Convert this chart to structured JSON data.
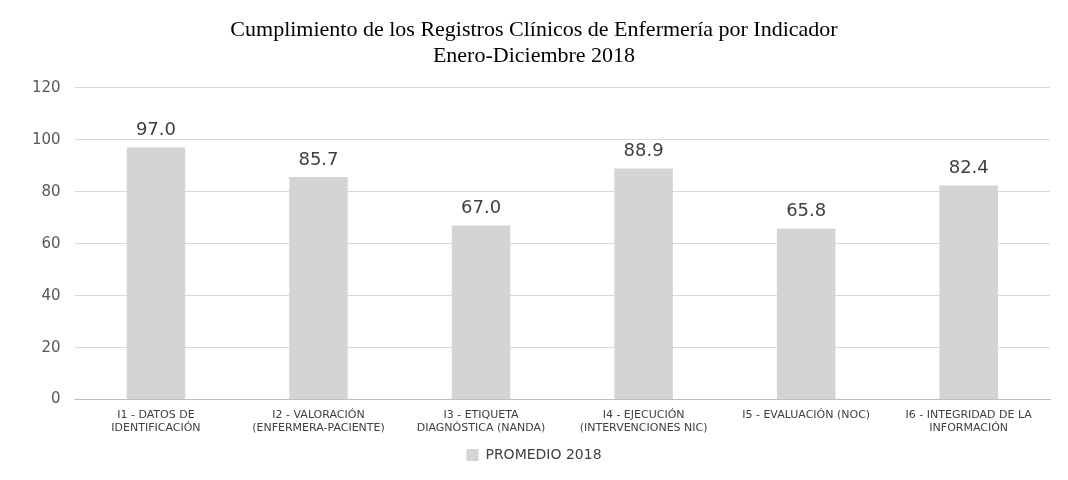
{
  "chart_data": {
    "type": "bar",
    "title": "Cumplimiento de los Registros Clínicos de Enfermería por Indicador",
    "subtitle": "Enero-Diciembre 2018",
    "categories": [
      "I1 - DATOS DE\nIDENTIFICACIÓN",
      "I2 - VALORACIÓN\n(ENFERMERA-PACIENTE)",
      "I3 - ETIQUETA\nDIAGNÓSTICA (NANDA)",
      "I4 - EJECUCIÓN\n(INTERVENCIONES NIC)",
      "I5 - EVALUACIÓN (NOC)",
      "I6 - INTEGRIDAD DE LA\nINFORMACIÓN"
    ],
    "series": [
      {
        "name": "PROMEDIO 2018",
        "color": "#d4d4d4",
        "values": [
          97.0,
          85.7,
          67.0,
          88.9,
          65.8,
          82.4
        ],
        "value_labels": [
          "97.0",
          "85.7",
          "67.0",
          "88.9",
          "65.8",
          "82.4"
        ]
      }
    ],
    "ylim": [
      0,
      120
    ],
    "yticks": [
      0,
      20,
      40,
      60,
      80,
      100,
      120
    ],
    "grid": "y",
    "legend": "bottom"
  }
}
